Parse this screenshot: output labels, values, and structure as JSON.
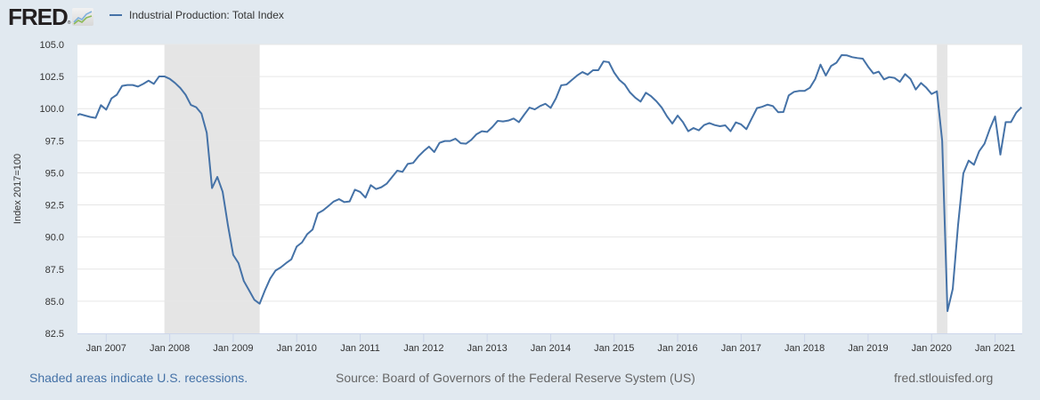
{
  "header": {
    "logo_text": "FRED",
    "logo_reg": "®",
    "logo_icon": "chart-line-icon",
    "legend_label": "Industrial Production: Total Index"
  },
  "footer": {
    "recession_note": "Shaded areas indicate U.S. recessions.",
    "source": "Source: Board of Governors of the Federal Reserve System (US)",
    "site": "fred.stlouisfed.org"
  },
  "colors": {
    "background": "#e1e9f0",
    "plot_background": "#ffffff",
    "series": "#4572a7",
    "recession": "#e5e5e5",
    "grid": "#e6e6e6"
  },
  "chart_data": {
    "type": "line",
    "title": "Industrial Production: Total Index",
    "xlabel": "",
    "ylabel": "Index 2017=100",
    "ylim": [
      82.5,
      105.0
    ],
    "yticks": [
      "82.5",
      "85.0",
      "87.5",
      "90.0",
      "92.5",
      "95.0",
      "97.5",
      "100.0",
      "102.5",
      "105.0"
    ],
    "xticks": [
      "Jan 2007",
      "Jan 2008",
      "Jan 2009",
      "Jan 2010",
      "Jan 2011",
      "Jan 2012",
      "Jan 2013",
      "Jan 2014",
      "Jan 2015",
      "Jan 2016",
      "Jan 2017",
      "Jan 2018",
      "Jan 2019",
      "Jan 2020",
      "Jan 2021"
    ],
    "x_start": "2006-07",
    "x_end": "2021-06",
    "frequency": "monthly",
    "grid": true,
    "legend": "top-left",
    "recessions": [
      {
        "start": "2007-12",
        "end": "2009-06"
      },
      {
        "start": "2020-02",
        "end": "2020-04"
      }
    ],
    "series": [
      {
        "name": "Industrial Production: Total Index",
        "values": [
          99.39,
          99.58,
          99.46,
          99.35,
          99.28,
          100.27,
          99.92,
          100.8,
          101.08,
          101.77,
          101.84,
          101.84,
          101.72,
          101.93,
          102.18,
          101.93,
          102.51,
          102.51,
          102.32,
          102.0,
          101.61,
          101.08,
          100.29,
          100.11,
          99.62,
          98.12,
          93.81,
          94.68,
          93.53,
          90.92,
          88.61,
          87.97,
          86.58,
          85.85,
          85.11,
          84.81,
          85.85,
          86.77,
          87.39,
          87.64,
          87.97,
          88.27,
          89.26,
          89.58,
          90.23,
          90.58,
          91.85,
          92.08,
          92.42,
          92.77,
          92.95,
          92.72,
          92.77,
          93.69,
          93.51,
          93.07,
          94.04,
          93.74,
          93.88,
          94.15,
          94.66,
          95.17,
          95.08,
          95.7,
          95.77,
          96.28,
          96.69,
          97.04,
          96.62,
          97.34,
          97.48,
          97.48,
          97.66,
          97.31,
          97.27,
          97.57,
          98.01,
          98.24,
          98.19,
          98.58,
          99.05,
          99.0,
          99.07,
          99.23,
          98.95,
          99.53,
          100.08,
          99.94,
          100.2,
          100.38,
          100.06,
          100.8,
          101.82,
          101.88,
          102.23,
          102.58,
          102.85,
          102.65,
          102.99,
          102.99,
          103.68,
          103.62,
          102.81,
          102.23,
          101.88,
          101.26,
          100.85,
          100.55,
          101.24,
          100.96,
          100.57,
          100.08,
          99.39,
          98.84,
          99.46,
          98.95,
          98.24,
          98.49,
          98.31,
          98.72,
          98.88,
          98.72,
          98.63,
          98.7,
          98.24,
          98.93,
          98.77,
          98.4,
          99.23,
          100.04,
          100.15,
          100.31,
          100.2,
          99.72,
          99.74,
          101.03,
          101.31,
          101.38,
          101.38,
          101.63,
          102.3,
          103.43,
          102.58,
          103.32,
          103.57,
          104.17,
          104.15,
          104.01,
          103.94,
          103.89,
          103.27,
          102.74,
          102.88,
          102.28,
          102.46,
          102.39,
          102.09,
          102.69,
          102.32,
          101.49,
          102.0,
          101.63,
          101.14,
          101.35,
          97.5,
          84.23,
          85.96,
          90.92,
          94.96,
          95.95,
          95.63,
          96.69,
          97.27,
          98.42,
          99.39,
          96.42,
          98.95,
          98.95,
          99.69,
          100.11
        ]
      }
    ]
  }
}
